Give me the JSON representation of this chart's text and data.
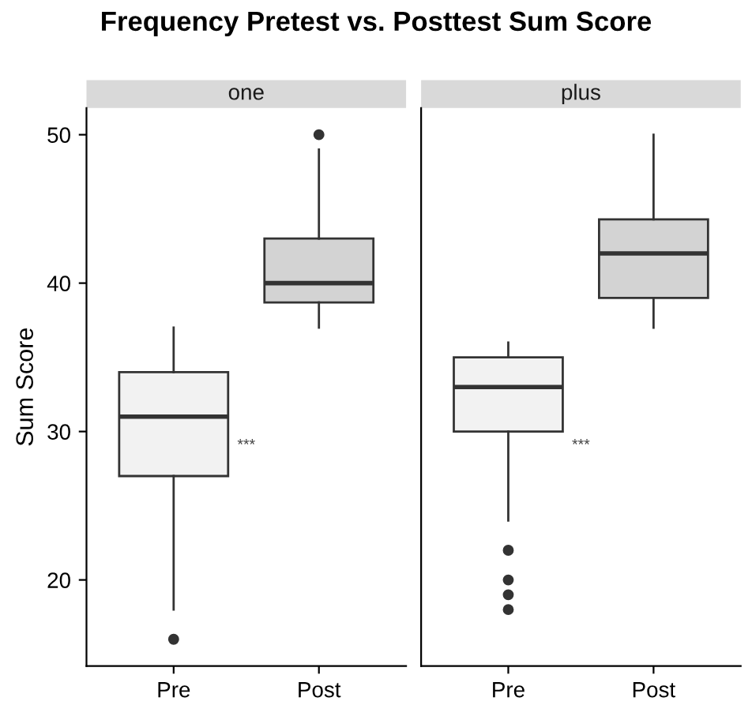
{
  "chart_data": [
    {
      "type": "box",
      "title": "Frequency Pretest vs. Posttest Sum Score",
      "subtitle": "one",
      "ylabel": "Sum Score",
      "categories": [
        "Pre",
        "Post"
      ],
      "colors": [
        "#f2f2f2",
        "#d3d3d3"
      ],
      "boxes": [
        {
          "low": 18,
          "q1": 27,
          "median": 31,
          "q3": 34,
          "high": 37,
          "outliers": [
            16
          ]
        },
        {
          "low": 37,
          "q1": 38.7,
          "median": 40,
          "q3": 43,
          "high": 49,
          "outliers": [
            50
          ]
        }
      ],
      "ylim": [
        14.2,
        51.8
      ],
      "yticks": [
        20,
        30,
        40,
        50
      ],
      "grid": false,
      "annotations": [
        "***"
      ]
    },
    {
      "type": "box",
      "subtitle": "plus",
      "categories": [
        "Pre",
        "Post"
      ],
      "colors": [
        "#f2f2f2",
        "#d3d3d3"
      ],
      "boxes": [
        {
          "low": 24,
          "q1": 30,
          "median": 33,
          "q3": 35,
          "high": 36,
          "outliers": [
            22,
            20,
            19,
            18
          ]
        },
        {
          "low": 37,
          "q1": 39,
          "median": 42,
          "q3": 44.3,
          "high": 50
        }
      ],
      "ylim": [
        14.2,
        51.8
      ],
      "yticks": [
        20,
        30,
        40,
        50
      ],
      "grid": false,
      "tick_labels": "x",
      "annotations": [
        "***"
      ]
    }
  ]
}
